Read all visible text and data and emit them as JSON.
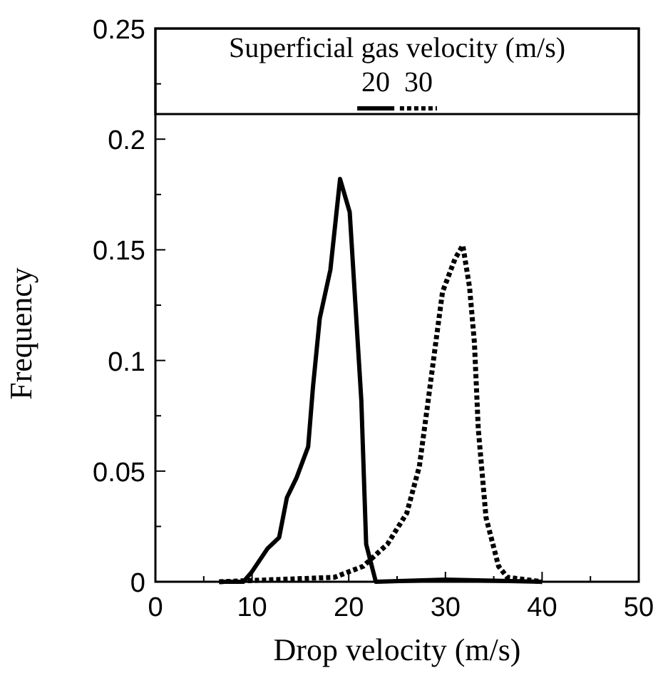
{
  "chart_data": {
    "type": "line",
    "xlabel": "Drop velocity (m/s)",
    "ylabel": "Frequency",
    "legend_title": "Superficial gas velocity (m/s)",
    "legend": "top",
    "xlim": [
      0,
      50
    ],
    "ylim": [
      0,
      0.25
    ],
    "xticks": [
      0,
      {
        "value": 5,
        "label": null
      },
      10,
      {
        "value": 15,
        "label": null
      },
      20,
      {
        "value": 25,
        "label": null
      },
      30,
      {
        "value": 35,
        "label": null
      },
      40,
      {
        "value": 45,
        "label": null
      },
      50
    ],
    "yticks": [
      0,
      {
        "value": 0.025,
        "label": null
      },
      0.05,
      {
        "value": 0.075,
        "label": null
      },
      0.1,
      {
        "value": 0.125,
        "label": null
      },
      0.15,
      {
        "value": 0.175,
        "label": null
      },
      0.2,
      {
        "value": 0.225,
        "label": null
      },
      0.25
    ],
    "grid": false,
    "marker": "none",
    "series": [
      {
        "name": "20",
        "color": "#000000",
        "line_style": "solid",
        "x": [
          6.6,
          9.1,
          9.9,
          11.6,
          12.8,
          13.6,
          14.6,
          15.8,
          16.3,
          17.0,
          18.1,
          19.1,
          20.1,
          21.3,
          21.8,
          22.8,
          30,
          40
        ],
        "values": [
          0,
          0,
          0.004,
          0.015,
          0.02,
          0.038,
          0.047,
          0.061,
          0.088,
          0.119,
          0.141,
          0.182,
          0.167,
          0.082,
          0.017,
          0,
          0.001,
          0
        ]
      },
      {
        "name": "30",
        "color": "#000000",
        "line_style": "dotted",
        "x": [
          6.6,
          18.5,
          21.5,
          24.0,
          26.0,
          27.3,
          28.1,
          29.0,
          29.7,
          31.0,
          31.8,
          32.5,
          33.0,
          33.4,
          34.2,
          35.5,
          36.4,
          40
        ],
        "values": [
          0,
          0.002,
          0.007,
          0.017,
          0.031,
          0.052,
          0.078,
          0.108,
          0.131,
          0.146,
          0.152,
          0.133,
          0.108,
          0.069,
          0.029,
          0.007,
          0.002,
          0
        ]
      }
    ]
  }
}
